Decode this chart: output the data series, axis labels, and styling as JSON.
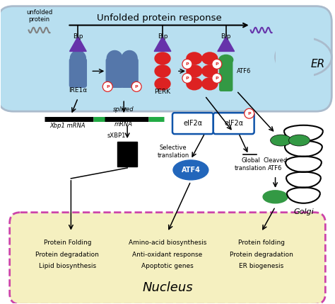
{
  "title": "Unfolded protein response",
  "er_label": "ER",
  "nucleus_label": "Nucleus",
  "golgi_label": "Golgi",
  "er_bg": "#b8dff0",
  "er_border": "#aaccdd",
  "nucleus_bg": "#f5f0c0",
  "nucleus_border": "#cc44aa",
  "purple_color": "#6633aa",
  "red_color": "#dd2222",
  "blue_ire": "#5577aa",
  "green_atf6": "#339944",
  "blue_atf4": "#2266bb",
  "teal_eif": "#1155aa",
  "pathway_labels": {
    "left": [
      "Protein Folding",
      "Protein degradation",
      "Lipid biosynthesis"
    ],
    "center": [
      "Amino-acid biosynthesis",
      "Anti-oxidant response",
      "Apoptotic genes"
    ],
    "right": [
      "Protein folding",
      "Protein degradation",
      "ER biogenesis"
    ]
  }
}
